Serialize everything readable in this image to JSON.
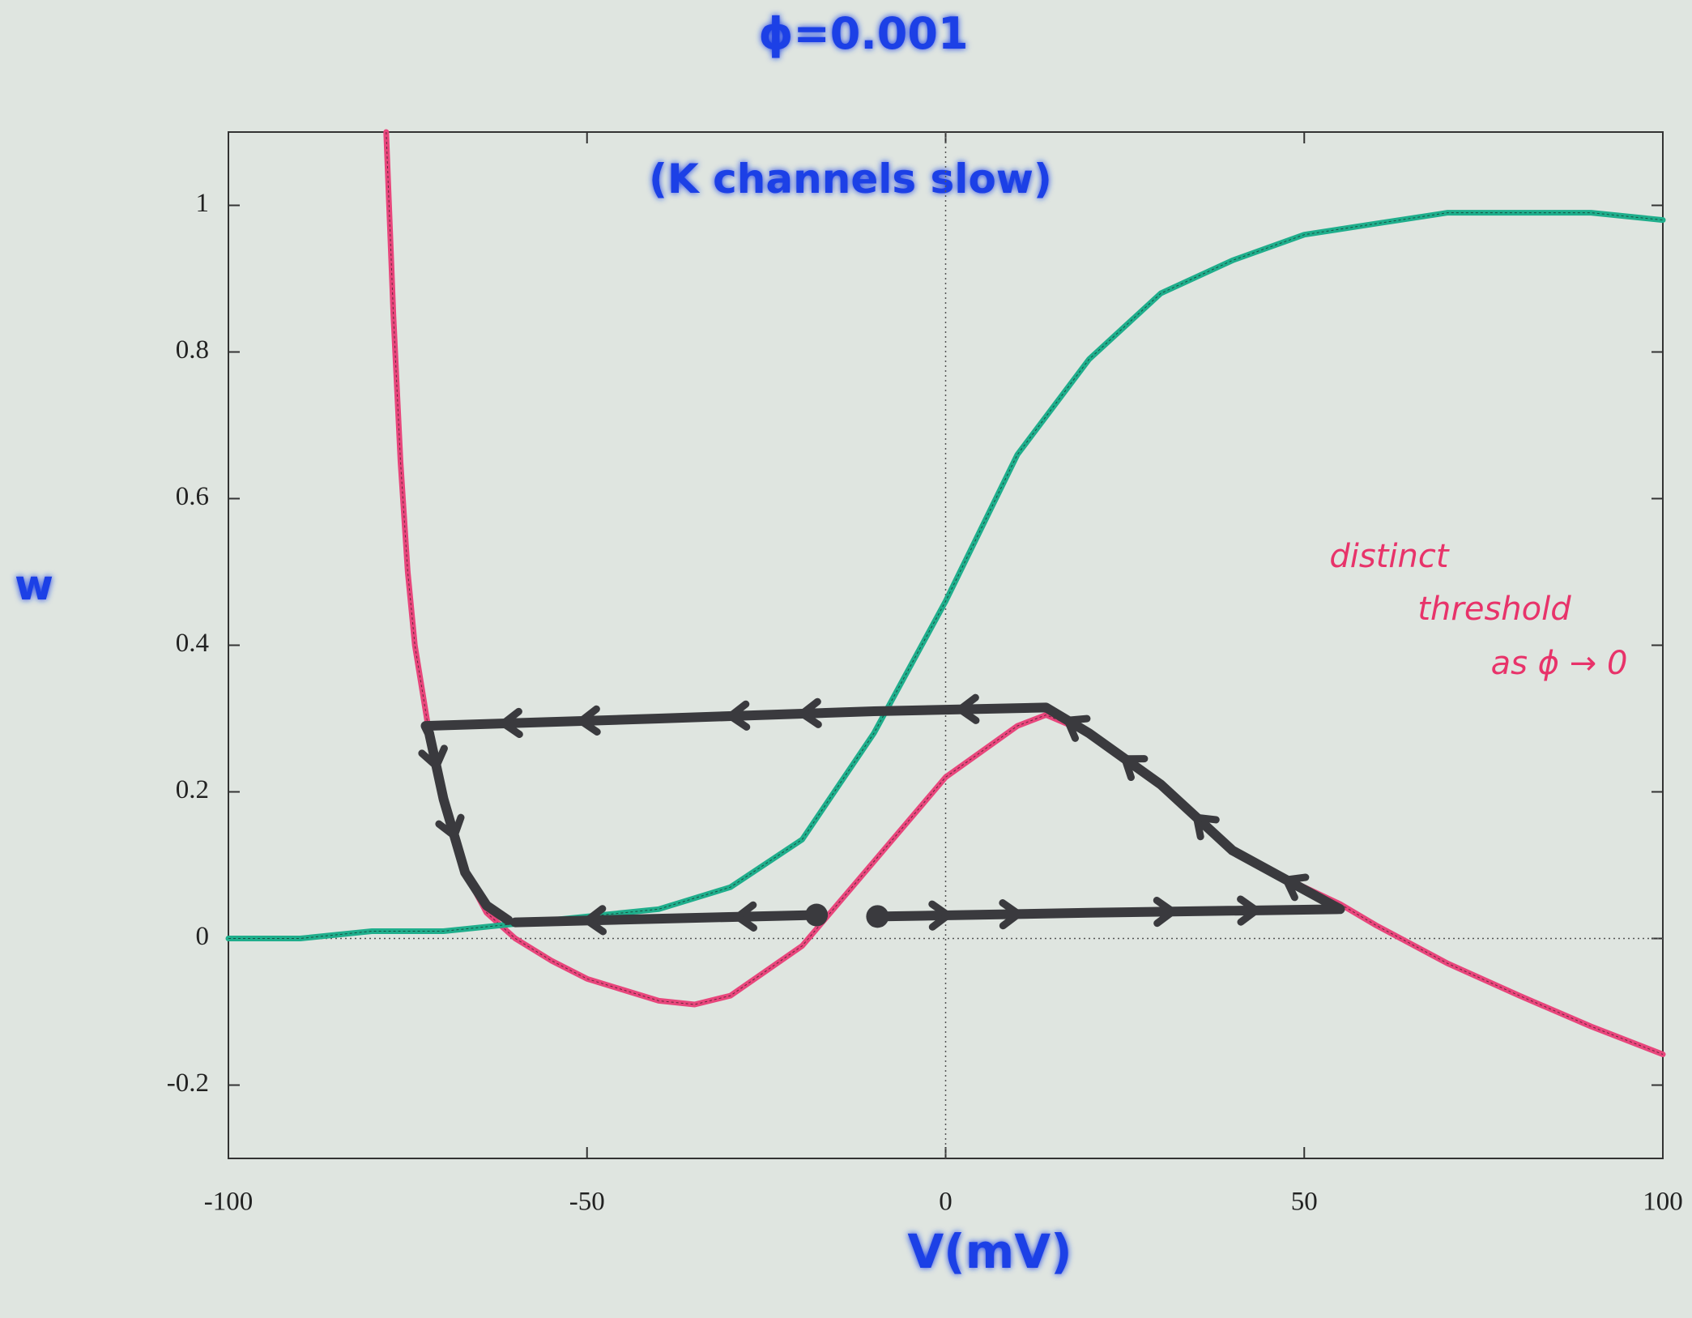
{
  "chart_data": {
    "type": "line",
    "title": "ϕ=0.001",
    "subtitle": "(K channels slow)",
    "xlabel": "V(mV)",
    "ylabel": "w",
    "annotation": [
      "distinct",
      "threshold",
      "as ϕ → 0"
    ],
    "xlim": [
      -100,
      100
    ],
    "ylim": [
      -0.3,
      1.1
    ],
    "xticks": [
      -100,
      -50,
      0,
      50,
      100
    ],
    "yticks": [
      -0.2,
      0,
      0.2,
      0.4,
      0.6,
      0.8,
      1
    ],
    "zero_lines": true,
    "series": [
      {
        "color": "#e8467c",
        "x": [
          -78,
          -77,
          -76,
          -75,
          -74,
          -72,
          -70,
          -67,
          -64,
          -60,
          -55,
          -50,
          -40,
          -35,
          -30,
          -20,
          -10,
          0,
          10,
          14,
          20,
          30,
          40,
          50,
          55,
          60,
          70,
          80,
          90,
          100
        ],
        "values": [
          1.1,
          0.85,
          0.65,
          0.5,
          0.4,
          0.28,
          0.19,
          0.09,
          0.035,
          0.0,
          -0.03,
          -0.055,
          -0.085,
          -0.09,
          -0.078,
          -0.01,
          0.105,
          0.22,
          0.29,
          0.305,
          0.28,
          0.21,
          0.12,
          0.07,
          0.047,
          0.018,
          -0.034,
          -0.078,
          -0.12,
          -0.158
        ]
      },
      {
        "color": "#1fae8c",
        "x": [
          -100,
          -90,
          -80,
          -70,
          -60,
          -50,
          -40,
          -30,
          -20,
          -10,
          0,
          10,
          20,
          30,
          40,
          50,
          60,
          70,
          80,
          90,
          100
        ],
        "values": [
          0,
          0,
          0.01,
          0.01,
          0.02,
          0.03,
          0.04,
          0.07,
          0.135,
          0.28,
          0.46,
          0.66,
          0.79,
          0.88,
          0.925,
          0.96,
          0.975,
          0.99,
          0.99,
          0.99,
          0.98
        ]
      },
      {
        "color": "#3a3a3e",
        "x": [
          -18,
          -40,
          -60
        ],
        "values": [
          0.032,
          0.027,
          0.022
        ]
      },
      {
        "color": "#3a3a3e",
        "x": [
          -9.5,
          20,
          55,
          40,
          30,
          20,
          14,
          -10,
          -40,
          -72.5,
          -72,
          -70,
          -67,
          -64,
          -61
        ],
        "values": [
          0.03,
          0.035,
          0.04,
          0.12,
          0.21,
          0.28,
          0.315,
          0.31,
          0.3,
          0.29,
          0.28,
          0.19,
          0.09,
          0.045,
          0.025
        ]
      }
    ]
  }
}
